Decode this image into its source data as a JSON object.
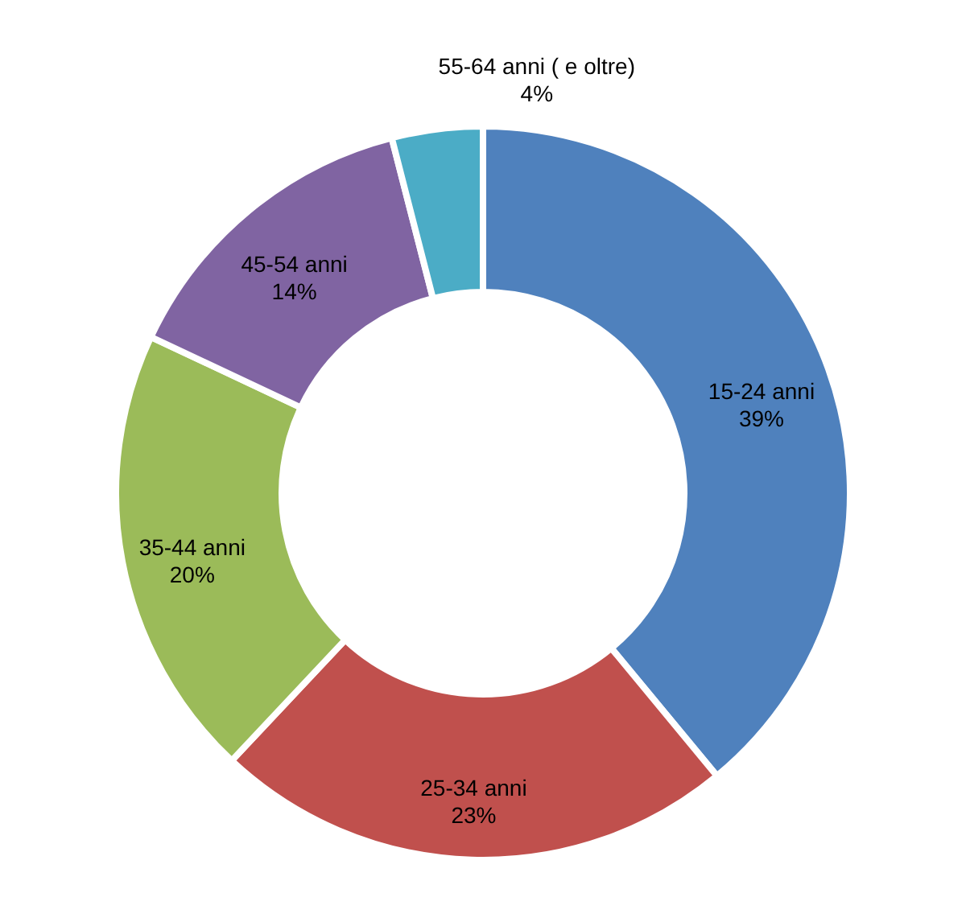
{
  "chart_data": {
    "type": "donut",
    "categories": [
      "15-24 anni",
      "25-34 anni",
      "35-44 anni",
      "45-54 anni",
      "55-64 anni ( e oltre)"
    ],
    "values": [
      39,
      23,
      20,
      14,
      4
    ],
    "value_labels": [
      "39%",
      "23%",
      "20%",
      "14%",
      "4%"
    ],
    "colors": [
      "#4f81bd",
      "#c0504d",
      "#9bbb59",
      "#8064a2",
      "#4bacc6"
    ]
  }
}
